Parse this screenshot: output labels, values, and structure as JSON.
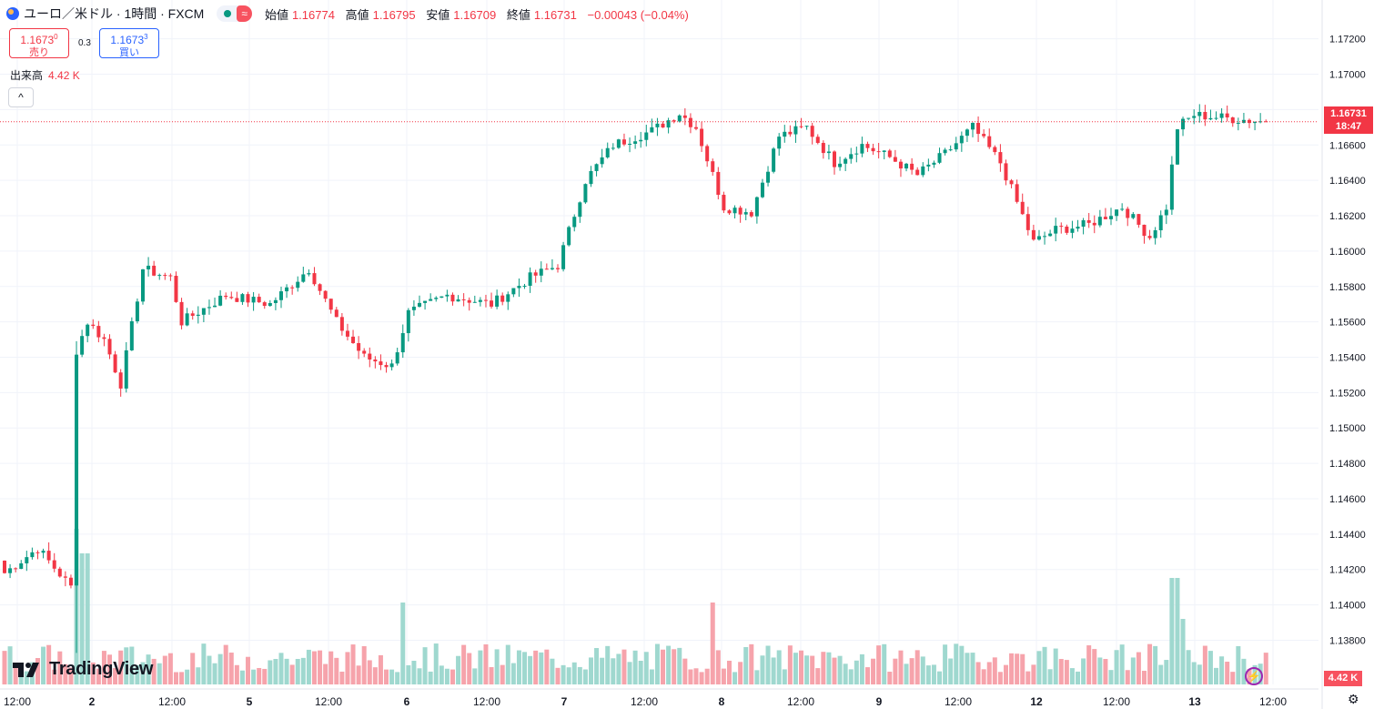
{
  "header": {
    "symbol_title": "ユーロ／米ドル · 1時間 · FXCM",
    "wave_icon": "≈",
    "ohlc": [
      {
        "label": "始値",
        "value": "1.16774"
      },
      {
        "label": "高値",
        "value": "1.16795"
      },
      {
        "label": "安値",
        "value": "1.16709"
      },
      {
        "label": "終値",
        "value": "1.16731"
      }
    ],
    "change": "−0.00043 (−0.04%)"
  },
  "trade": {
    "sell_price": "1.1673",
    "sell_sup": "0",
    "sell_label": "売り",
    "spread": "0.3",
    "buy_price": "1.1673",
    "buy_sup": "3",
    "buy_label": "買い"
  },
  "volume_legend": {
    "label": "出来高",
    "value": "4.42 K"
  },
  "collapse_icon": "^",
  "brand": "TradingView",
  "current_price": {
    "price": "1.16731",
    "countdown": "18:47"
  },
  "volume_tag": "4.42 K",
  "colors": {
    "up": "#089981",
    "down": "#f23645",
    "up_vol": "#9fd8cf",
    "down_vol": "#f6a3ab"
  },
  "chart_data": {
    "type": "candlestick",
    "y_axis_ticks": [
      "1.17200",
      "1.17000",
      "1.16800",
      "1.16600",
      "1.16400",
      "1.16200",
      "1.16000",
      "1.15800",
      "1.15600",
      "1.15400",
      "1.15200",
      "1.15000",
      "1.14800",
      "1.14600",
      "1.14400",
      "1.14200",
      "1.14000",
      "1.13800"
    ],
    "ylim": [
      1.1372,
      1.1726
    ],
    "x_axis_ticks": [
      "12:00",
      "2",
      "12:00",
      "5",
      "12:00",
      "6",
      "12:00",
      "7",
      "12:00",
      "8",
      "12:00",
      "9",
      "12:00",
      "12",
      "12:00",
      "13",
      "12:00"
    ],
    "candle_count": 229,
    "waypoints": [
      [
        0,
        1.1418
      ],
      [
        6,
        1.1432
      ],
      [
        12,
        1.141
      ],
      [
        13,
        1.1544
      ],
      [
        15,
        1.156
      ],
      [
        18,
        1.155
      ],
      [
        21,
        1.1525
      ],
      [
        25,
        1.159
      ],
      [
        30,
        1.1585
      ],
      [
        32,
        1.156
      ],
      [
        40,
        1.1575
      ],
      [
        48,
        1.157
      ],
      [
        55,
        1.159
      ],
      [
        60,
        1.156
      ],
      [
        65,
        1.154
      ],
      [
        70,
        1.1535
      ],
      [
        73,
        1.1565
      ],
      [
        80,
        1.1575
      ],
      [
        88,
        1.157
      ],
      [
        95,
        1.1585
      ],
      [
        100,
        1.1592
      ],
      [
        105,
        1.164
      ],
      [
        110,
        1.166
      ],
      [
        117,
        1.1668
      ],
      [
        122,
        1.1678
      ],
      [
        125,
        1.167
      ],
      [
        130,
        1.1625
      ],
      [
        135,
        1.1622
      ],
      [
        140,
        1.1665
      ],
      [
        145,
        1.167
      ],
      [
        150,
        1.165
      ],
      [
        155,
        1.166
      ],
      [
        160,
        1.1653
      ],
      [
        165,
        1.1643
      ],
      [
        170,
        1.1655
      ],
      [
        175,
        1.167
      ],
      [
        180,
        1.165
      ],
      [
        186,
        1.1605
      ],
      [
        190,
        1.1612
      ],
      [
        196,
        1.1615
      ],
      [
        202,
        1.1625
      ],
      [
        207,
        1.1608
      ],
      [
        210,
        1.1625
      ],
      [
        212,
        1.167
      ],
      [
        215,
        1.1677
      ],
      [
        228,
        1.1673
      ]
    ]
  }
}
